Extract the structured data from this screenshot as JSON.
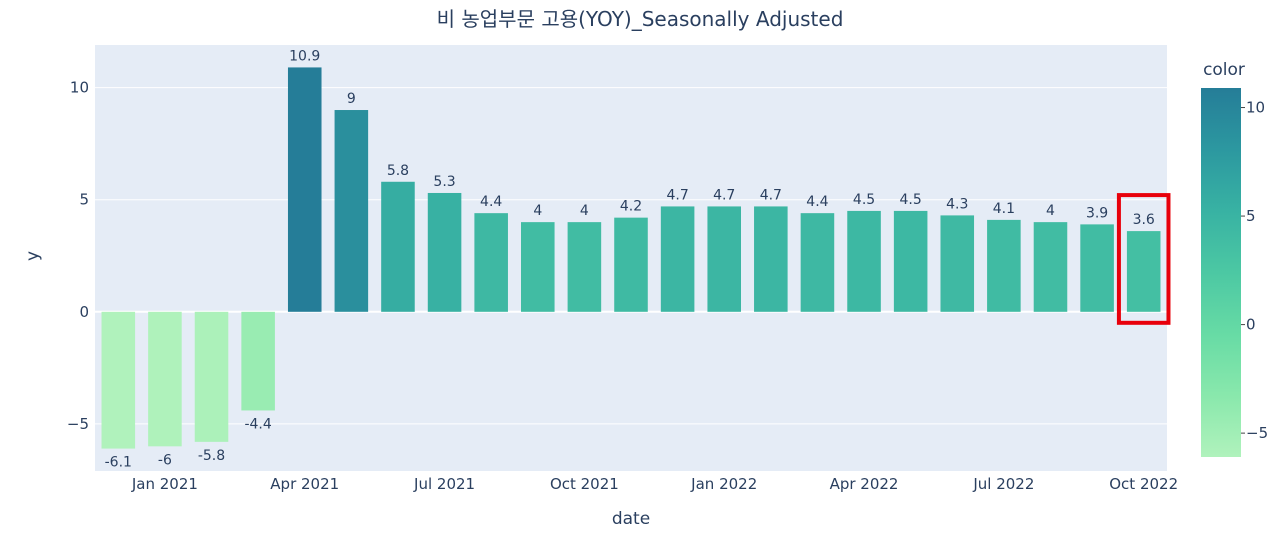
{
  "chart_data": {
    "type": "bar",
    "title": "비 농업부문 고용(YOY)_Seasonally Adjusted",
    "xlabel": "date",
    "ylabel": "y",
    "x": [
      "2020-12",
      "2021-01",
      "2021-02",
      "2021-03",
      "2021-04",
      "2021-05",
      "2021-06",
      "2021-07",
      "2021-08",
      "2021-09",
      "2021-10",
      "2021-11",
      "2021-12",
      "2022-01",
      "2022-02",
      "2022-03",
      "2022-04",
      "2022-05",
      "2022-06",
      "2022-07",
      "2022-08",
      "2022-09",
      "2022-10"
    ],
    "values": [
      -6.1,
      -6,
      -5.8,
      -4.4,
      10.9,
      9,
      5.8,
      5.3,
      4.4,
      4,
      4,
      4.2,
      4.7,
      4.7,
      4.7,
      4.4,
      4.5,
      4.5,
      4.3,
      4.1,
      4,
      3.9,
      3.6
    ],
    "data_labels": [
      "-6.1",
      "-6",
      "-5.8",
      "-4.4",
      "10.9",
      "9",
      "5.8",
      "5.3",
      "4.4",
      "4",
      "4",
      "4.2",
      "4.7",
      "4.7",
      "4.7",
      "4.4",
      "4.5",
      "4.5",
      "4.3",
      "4.1",
      "4",
      "3.9",
      "3.6"
    ],
    "x_tick_labels": [
      "Jan 2021",
      "Apr 2021",
      "Jul 2021",
      "Oct 2021",
      "Jan 2022",
      "Apr 2022",
      "Jul 2022",
      "Oct 2022"
    ],
    "x_tick_positions": [
      1,
      4,
      7,
      10,
      13,
      16,
      19,
      22
    ],
    "y_ticks": [
      -5,
      0,
      5,
      10
    ],
    "y_tick_labels": [
      "−5",
      "0",
      "5",
      "10"
    ],
    "ylim": [
      -7.1,
      11.9
    ],
    "grid": true,
    "highlighted_index": 22,
    "highlight_color": "#e8000b",
    "plot_bg": "#e5ecf6",
    "colorbar": {
      "title": "color",
      "ticks": [
        10,
        5,
        0,
        -5
      ],
      "tick_labels": [
        "10",
        "5",
        "0",
        "−5"
      ],
      "range": [
        -6.1,
        10.9
      ],
      "colors": [
        "#b0f2bc",
        "#89e8ac",
        "#67dba5",
        "#4cc8a3",
        "#38b2a3",
        "#2c98a0",
        "#257d98"
      ]
    }
  }
}
